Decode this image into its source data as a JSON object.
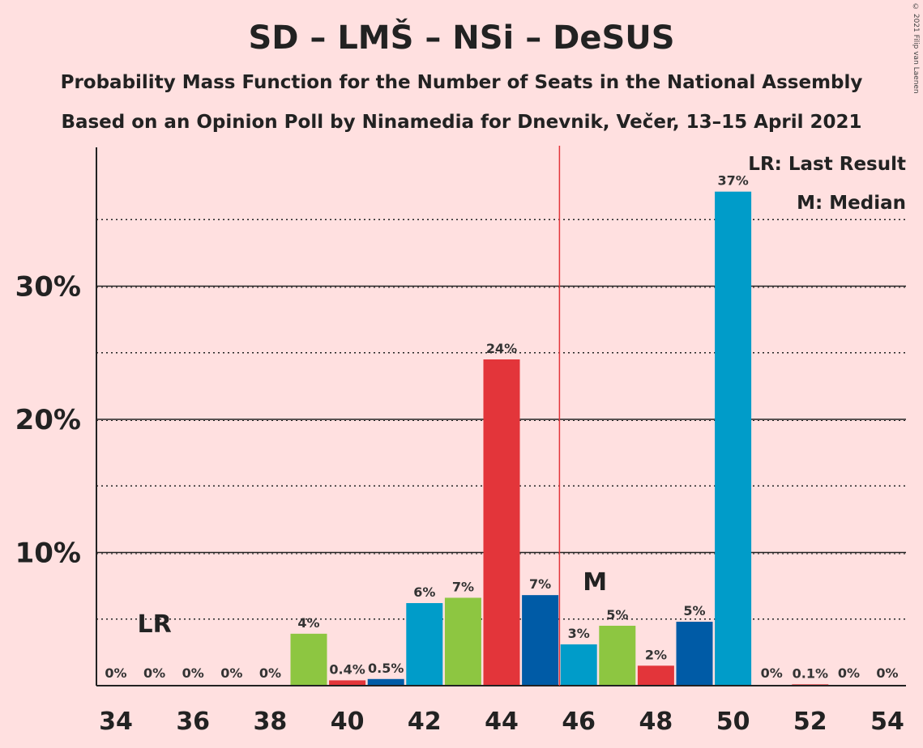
{
  "title": "SD – LMŠ – NSi – DeSUS",
  "subtitle1": "Probability Mass Function for the Number of Seats in the National Assembly",
  "subtitle2": "Based on an Opinion Poll by Ninamedia for Dnevnik, Večer, 13–15 April 2021",
  "copyright": "© 2021 Filip van Laenen",
  "legend": {
    "last_result": "LR: Last Result",
    "median": "M: Median"
  },
  "chart_data": {
    "type": "bar",
    "x": [
      34,
      35,
      36,
      37,
      38,
      39,
      40,
      41,
      42,
      43,
      44,
      45,
      46,
      47,
      48,
      49,
      50,
      51,
      52,
      53,
      54
    ],
    "values": [
      0,
      0,
      0,
      0,
      0,
      3.9,
      0.4,
      0.5,
      6.2,
      6.6,
      24.5,
      6.8,
      3.1,
      4.5,
      1.5,
      4.8,
      37.1,
      0,
      0.1,
      0,
      0
    ],
    "labels": [
      "0%",
      "0%",
      "0%",
      "0%",
      "0%",
      "4%",
      "0.4%",
      "0.5%",
      "6%",
      "7%",
      "24%",
      "7%",
      "3%",
      "5%",
      "2%",
      "5%",
      "37%",
      "0%",
      "0.1%",
      "0%",
      "0%"
    ],
    "colors": [
      "#8DC641",
      "#E3353A",
      "#005BA6",
      "#009CC9",
      "#8DC641",
      "#8DC641",
      "#E3353A",
      "#005BA6",
      "#009CC9",
      "#8DC641",
      "#E3353A",
      "#005BA6",
      "#009CC9",
      "#8DC641",
      "#E3353A",
      "#005BA6",
      "#009CC9",
      "#8DC641",
      "#E3353A",
      "#005BA6",
      "#009CC9"
    ],
    "x_ticks": [
      "34",
      "36",
      "38",
      "40",
      "42",
      "44",
      "46",
      "48",
      "50",
      "52",
      "54"
    ],
    "y_ticks": [
      {
        "value": 10,
        "label": "10%"
      },
      {
        "value": 20,
        "label": "20%"
      },
      {
        "value": 30,
        "label": "30%"
      }
    ],
    "minor_gridlines": [
      5,
      15,
      25,
      35
    ],
    "ylim": [
      0,
      40
    ],
    "majority_line": 45.5,
    "last_result": {
      "x": 35,
      "label": "LR"
    },
    "median": {
      "x": 46,
      "label": "M"
    },
    "legend_position": "top-right"
  }
}
